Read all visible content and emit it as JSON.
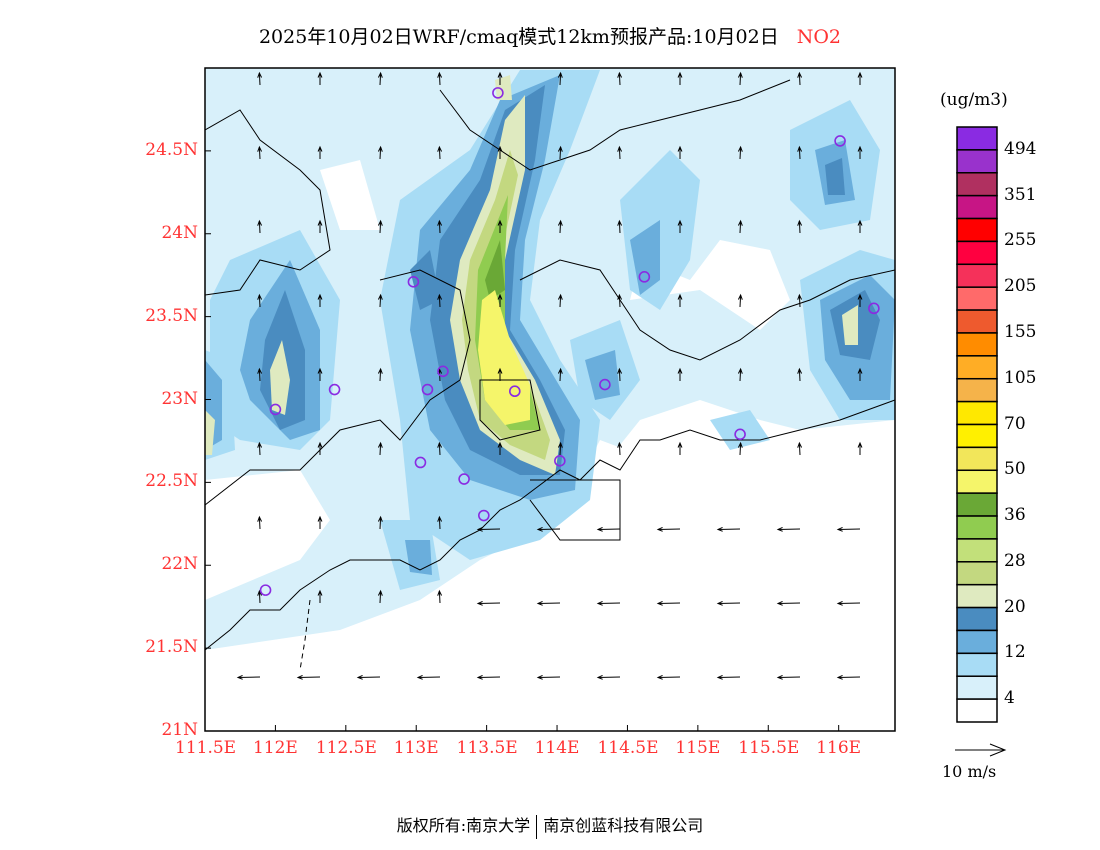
{
  "title": {
    "main": "2025年10月02日WRF/cmaq模式12km预报产品:10月02日",
    "species": "NO2"
  },
  "map": {
    "lon_ticks": [
      "111.5E",
      "112E",
      "112.5E",
      "113E",
      "113.5E",
      "114E",
      "114.5E",
      "115E",
      "115.5E",
      "116E"
    ],
    "lon_values": [
      111.5,
      112,
      112.5,
      113,
      113.5,
      114,
      114.5,
      115,
      115.5,
      116
    ],
    "lat_ticks": [
      "21N",
      "21.5N",
      "22N",
      "22.5N",
      "23N",
      "23.5N",
      "24N",
      "24.5N"
    ],
    "lat_values": [
      21,
      21.5,
      22,
      22.5,
      23,
      23.5,
      24,
      24.5
    ],
    "lon_range": [
      111.5,
      116.4
    ],
    "lat_range": [
      21,
      25.0
    ],
    "stations": [
      [
        113.58,
        24.85
      ],
      [
        116.01,
        24.56
      ],
      [
        112.98,
        23.71
      ],
      [
        114.62,
        23.74
      ],
      [
        116.25,
        23.55
      ],
      [
        113.19,
        23.17
      ],
      [
        113.08,
        23.06
      ],
      [
        112.42,
        23.06
      ],
      [
        113.7,
        23.05
      ],
      [
        114.34,
        23.09
      ],
      [
        112.0,
        22.94
      ],
      [
        115.3,
        22.79
      ],
      [
        113.03,
        22.62
      ],
      [
        114.02,
        22.63
      ],
      [
        113.34,
        22.52
      ],
      [
        113.48,
        22.3
      ],
      [
        111.93,
        21.85
      ]
    ],
    "station_color": "#8a2be2"
  },
  "colorbar": {
    "unit": "(ug/m3)",
    "colors": [
      "#8a2be2",
      "#9932cc",
      "#b03060",
      "#c71585",
      "#ff0000",
      "#ff0040",
      "#f5315a",
      "#ff6a6a",
      "#ee5a2e",
      "#ff8c00",
      "#ffad25",
      "#f5b34a",
      "#ffe800",
      "#fff000",
      "#f2e65a",
      "#f5f56a",
      "#6aa836",
      "#90cc50",
      "#c2e07a",
      "#c3d880",
      "#dfeac0",
      "#4a8cc0",
      "#6aaedc",
      "#a8dcf5",
      "#d8f0fa",
      "#ffffff"
    ],
    "labels": [
      "494",
      "351",
      "255",
      "205",
      "155",
      "105",
      "70",
      "50",
      "36",
      "28",
      "20",
      "12",
      "4"
    ]
  },
  "wind_legend": "10 m/s",
  "footer": {
    "left": "版权所有:南京大学",
    "right": "南京创蓝科技有限公司"
  }
}
